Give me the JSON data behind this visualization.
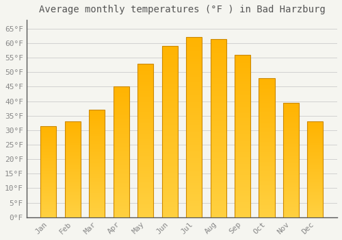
{
  "title": "Average monthly temperatures (°F ) in Bad Harzburg",
  "months": [
    "Jan",
    "Feb",
    "Mar",
    "Apr",
    "May",
    "Jun",
    "Jul",
    "Aug",
    "Sep",
    "Oct",
    "Nov",
    "Dec"
  ],
  "values": [
    31.5,
    33.0,
    37.0,
    45.0,
    53.0,
    59.0,
    62.0,
    61.5,
    56.0,
    48.0,
    39.5,
    33.0
  ],
  "bar_color": "#FFA500",
  "bar_color_gradient_top": "#FFB300",
  "bar_color_gradient_bottom": "#FFD040",
  "bar_edge_color": "#CC8800",
  "background_color": "#f5f5f0",
  "ylim": [
    0,
    68
  ],
  "yticks": [
    0,
    5,
    10,
    15,
    20,
    25,
    30,
    35,
    40,
    45,
    50,
    55,
    60,
    65
  ],
  "ytick_labels": [
    "0°F",
    "5°F",
    "10°F",
    "15°F",
    "20°F",
    "25°F",
    "30°F",
    "35°F",
    "40°F",
    "45°F",
    "50°F",
    "55°F",
    "60°F",
    "65°F"
  ],
  "title_fontsize": 10,
  "tick_fontsize": 8,
  "grid_color": "#cccccc",
  "bar_edge_linewidth": 0.8,
  "bar_width": 0.65
}
